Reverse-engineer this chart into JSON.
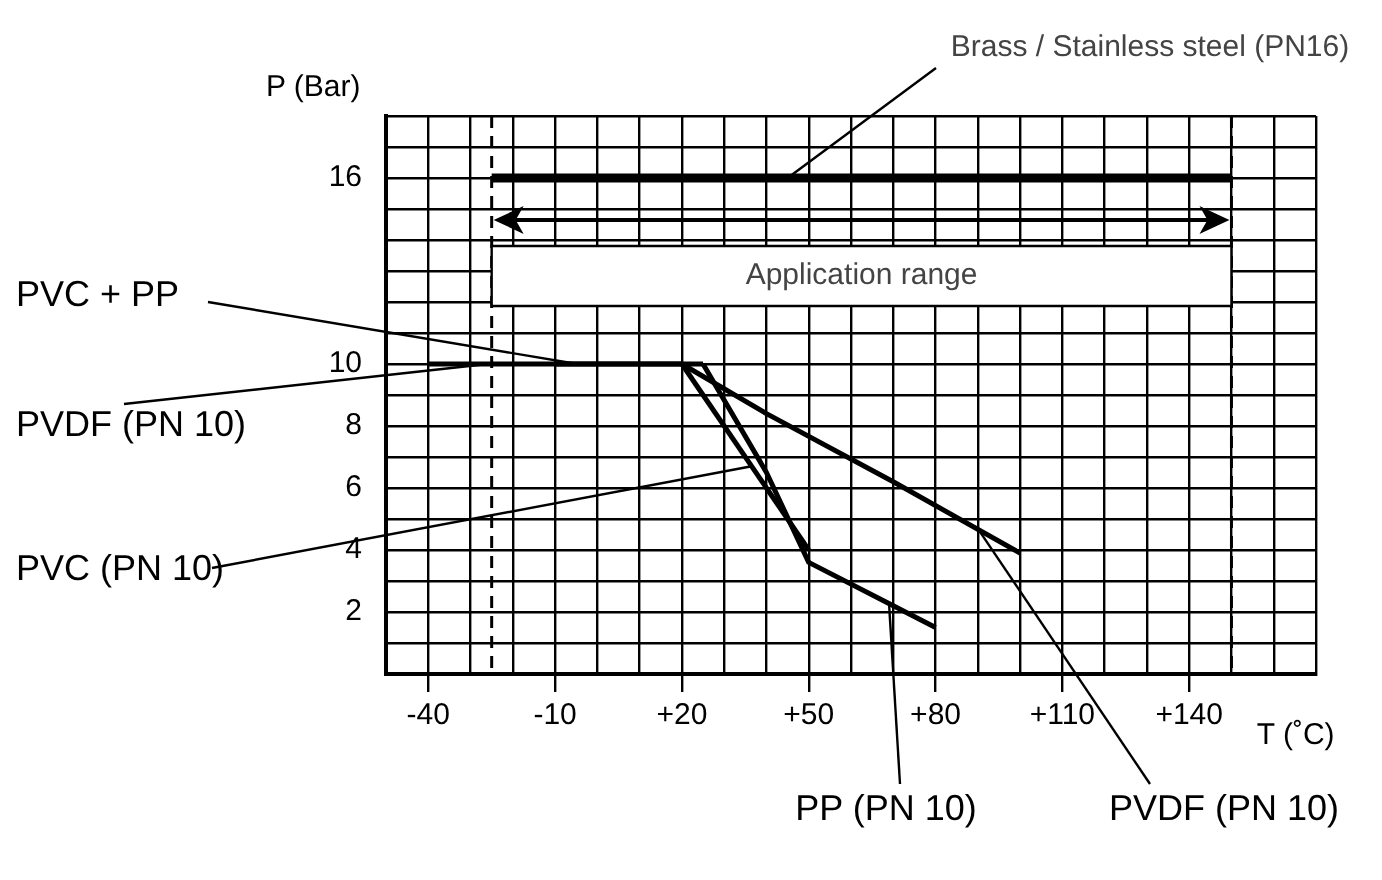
{
  "chart_data": {
    "type": "line",
    "xlabel": "T (˚C)",
    "ylabel": "P (Bar)",
    "xlim": [
      -50,
      170
    ],
    "ylim": [
      0,
      18
    ],
    "xticks": [
      {
        "value": -50,
        "label": null
      },
      -40,
      {
        "value": -30,
        "label": null
      },
      {
        "value": -20,
        "label": null
      },
      -10,
      {
        "value": 0,
        "label": null
      },
      {
        "value": 10,
        "label": null
      },
      {
        "value": 20,
        "label": "+20"
      },
      {
        "value": 30,
        "label": null
      },
      {
        "value": 40,
        "label": null
      },
      {
        "value": 50,
        "label": "+50"
      },
      {
        "value": 60,
        "label": null
      },
      {
        "value": 70,
        "label": null
      },
      {
        "value": 80,
        "label": "+80"
      },
      {
        "value": 90,
        "label": null
      },
      {
        "value": 100,
        "label": null
      },
      {
        "value": 110,
        "label": "+110"
      },
      {
        "value": 120,
        "label": null
      },
      {
        "value": 130,
        "label": null
      },
      {
        "value": 140,
        "label": "+140"
      },
      {
        "value": 150,
        "label": null
      },
      {
        "value": 160,
        "label": null
      },
      {
        "value": 170,
        "label": null
      }
    ],
    "yticks": [
      {
        "value": 0,
        "label": null
      },
      {
        "value": 1,
        "label": null
      },
      2,
      {
        "value": 3,
        "label": null
      },
      4,
      {
        "value": 5,
        "label": null
      },
      6,
      {
        "value": 7,
        "label": null
      },
      8,
      {
        "value": 9,
        "label": null
      },
      10,
      {
        "value": 11,
        "label": null
      },
      {
        "value": 12,
        "label": null
      },
      {
        "value": 13,
        "label": null
      },
      {
        "value": 14,
        "label": null
      },
      {
        "value": 15,
        "label": null
      },
      16,
      {
        "value": 17,
        "label": null
      },
      {
        "value": 18,
        "label": null
      }
    ],
    "grid": true,
    "legend": false,
    "line_style": "solid",
    "bands": [
      {
        "axis": "x",
        "from": -25,
        "to": 150,
        "label": "Application range"
      }
    ],
    "ref_lines": [
      {
        "axis": "x",
        "value": -25,
        "line_style": "dashed"
      },
      {
        "axis": "x",
        "value": 150,
        "line_style": "dashed"
      }
    ],
    "series": [
      {
        "name": "Brass / Stainless steel (PN16)",
        "color": "#000000",
        "x": [
          -25,
          150
        ],
        "values": [
          16,
          16
        ]
      },
      {
        "name": "PVC + PP",
        "color": "#000000",
        "x": [
          -10,
          25
        ],
        "values": [
          10,
          10
        ]
      },
      {
        "name": "PVDF (PN 10)",
        "color": "#000000",
        "x": [
          -40,
          20,
          40,
          70,
          100
        ],
        "values": [
          10,
          10,
          8.4,
          6.2,
          3.9
        ]
      },
      {
        "name": "PVC (PN 10)",
        "color": "#000000",
        "x": [
          20,
          50
        ],
        "values": [
          10,
          4
        ]
      },
      {
        "name": "PP (PN 10)",
        "color": "#000000",
        "x": [
          25,
          40,
          50,
          70,
          80
        ],
        "values": [
          10,
          6.5,
          3.6,
          2.2,
          1.5
        ]
      }
    ]
  }
}
